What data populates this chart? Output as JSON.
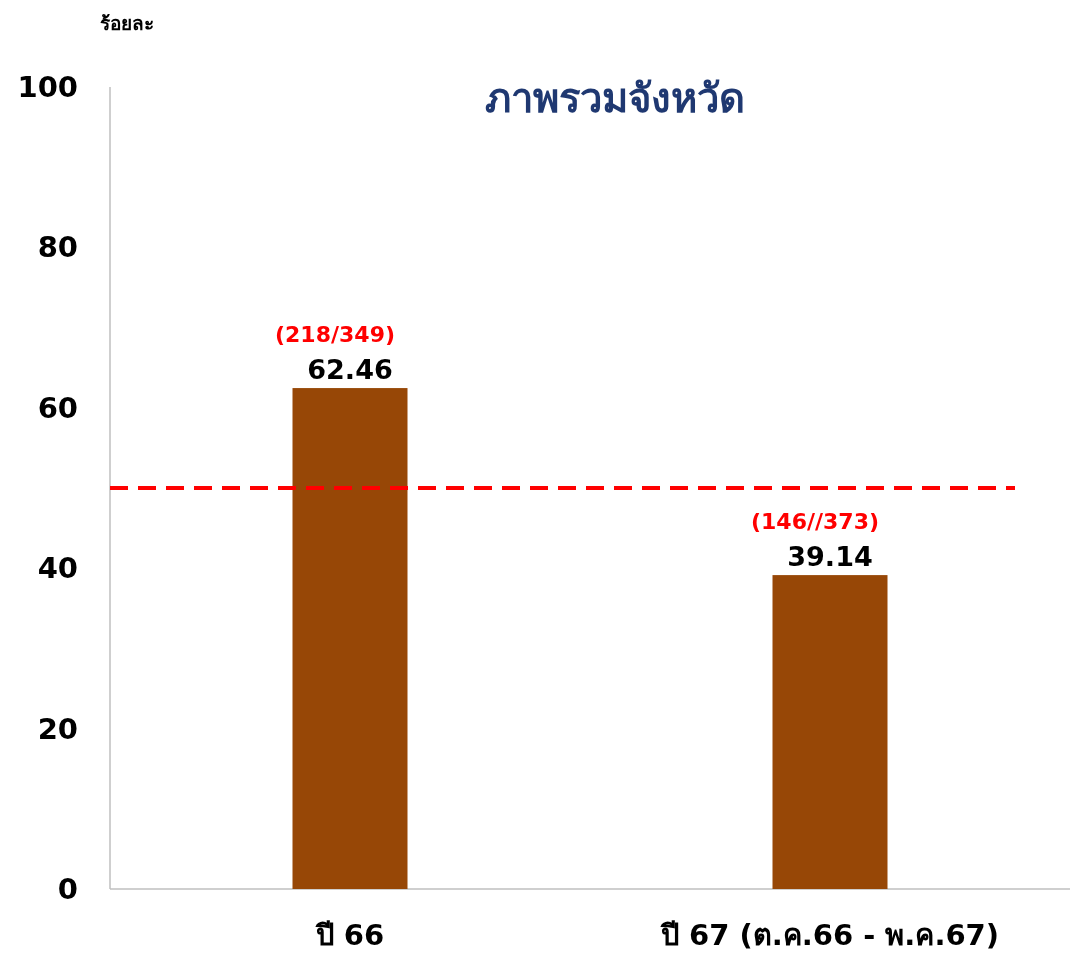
{
  "chart_data": {
    "type": "bar",
    "title": "ภาพรวมจังหวัด",
    "ylabel": "ร้อยละ",
    "categories": [
      "ปี 66",
      "ปี 67 (ต.ค.66 - พ.ค.67)"
    ],
    "values": [
      62.46,
      39.14
    ],
    "color": "#974706",
    "ylim": [
      0,
      100
    ],
    "yticks": [
      0,
      20,
      40,
      60,
      80,
      100
    ],
    "grid": false,
    "data_labels": true,
    "ref_lines": [
      {
        "axis": "y",
        "value": 50,
        "color": "#ff0000",
        "line_style": "dashed"
      }
    ],
    "annotations": [
      {
        "text": "(218/349)",
        "x": "ปี 66",
        "y": 62.46
      },
      {
        "text": "(146//373)",
        "x": "ปี 67 (ต.ค.66 - พ.ค.67)",
        "y": 39.14
      }
    ]
  }
}
